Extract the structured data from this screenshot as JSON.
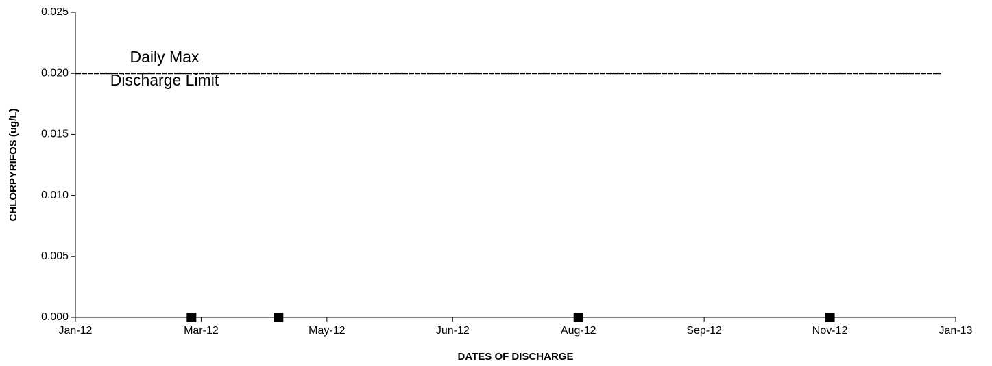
{
  "chart_data": {
    "type": "scatter",
    "x_label": "DATES OF DISCHARGE",
    "y_label": "CHLORPYRIFOS (ug/L)",
    "annotation": [
      "Daily Max",
      "Discharge Limit"
    ],
    "xlim": [
      40909,
      41273
    ],
    "ylim": [
      0,
      0.025
    ],
    "xticks": [
      {
        "value": 40909,
        "label": "Jan-12"
      },
      {
        "value": 40961,
        "label": "Mar-12"
      },
      {
        "value": 41013,
        "label": "May-12"
      },
      {
        "value": 41065,
        "label": "Jun-12"
      },
      {
        "value": 41117,
        "label": "Aug-12"
      },
      {
        "value": 41169,
        "label": "Sep-12"
      },
      {
        "value": 41221,
        "label": "Nov-12"
      },
      {
        "value": 41273,
        "label": "Jan-13"
      }
    ],
    "yticks": [
      {
        "value": 0,
        "label": "0.000"
      },
      {
        "value": 0.005,
        "label": "0.005"
      },
      {
        "value": 0.01,
        "label": "0.010"
      },
      {
        "value": 0.015,
        "label": "0.015"
      },
      {
        "value": 0.02,
        "label": "0.020"
      },
      {
        "value": 0.025,
        "label": "0.025"
      }
    ],
    "limit": {
      "x": [
        40909,
        41267
      ],
      "values": [
        0.02,
        0.02
      ],
      "color": "#000000"
    },
    "points": {
      "x": [
        40957,
        40993,
        41117,
        41221
      ],
      "values": [
        0,
        0,
        0,
        0
      ],
      "color": "#000000"
    }
  }
}
